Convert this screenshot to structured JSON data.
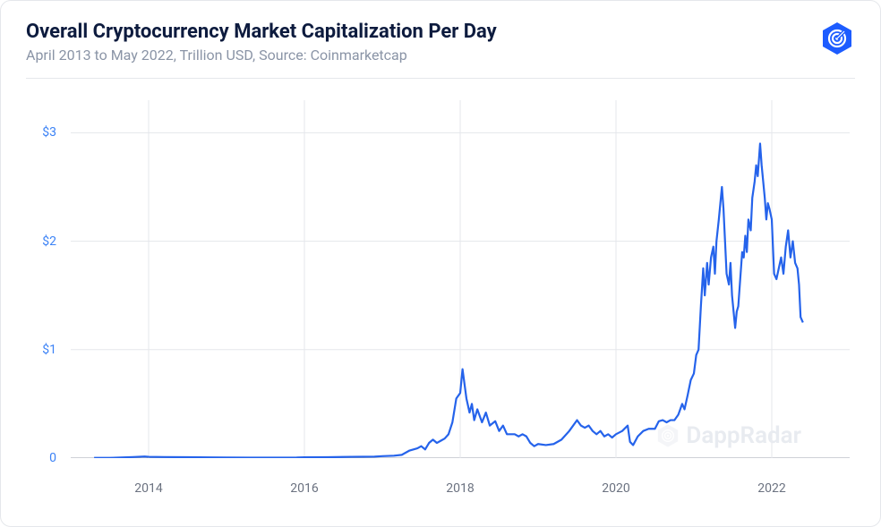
{
  "header": {
    "title": "Overall Cryptocurrency Market Capitalization Per Day",
    "subtitle": "April 2013 to May 2022, Trillion USD, Source: Coinmarketcap"
  },
  "watermark": "DappRadar",
  "chart": {
    "type": "line",
    "line_color": "#2563eb",
    "line_width": 2.2,
    "background_color": "#ffffff",
    "grid_color": "#e5e7eb",
    "axis_color": "#9ca3af",
    "y_axis": {
      "label_color": "#3b82f6",
      "label_fontsize": 14,
      "ylim": [
        0,
        3.3
      ],
      "ticks": [
        {
          "value": 0,
          "label": "0"
        },
        {
          "value": 1,
          "label": "$1"
        },
        {
          "value": 2,
          "label": "$2"
        },
        {
          "value": 3,
          "label": "$3"
        }
      ]
    },
    "x_axis": {
      "label_color": "#6b7280",
      "label_fontsize": 14,
      "xlim": [
        2013.0,
        2023.0
      ],
      "ticks": [
        {
          "value": 2014,
          "label": "2014"
        },
        {
          "value": 2016,
          "label": "2016"
        },
        {
          "value": 2018,
          "label": "2018"
        },
        {
          "value": 2020,
          "label": "2020"
        },
        {
          "value": 2022,
          "label": "2022"
        }
      ]
    },
    "series": [
      {
        "name": "market_cap",
        "color": "#2563eb",
        "data": [
          [
            2013.3,
            0.002
          ],
          [
            2013.5,
            0.002
          ],
          [
            2013.8,
            0.01
          ],
          [
            2013.95,
            0.015
          ],
          [
            2014.0,
            0.012
          ],
          [
            2014.2,
            0.01
          ],
          [
            2014.5,
            0.008
          ],
          [
            2014.8,
            0.006
          ],
          [
            2015.0,
            0.005
          ],
          [
            2015.3,
            0.004
          ],
          [
            2015.6,
            0.004
          ],
          [
            2015.9,
            0.005
          ],
          [
            2016.0,
            0.007
          ],
          [
            2016.3,
            0.008
          ],
          [
            2016.6,
            0.012
          ],
          [
            2016.9,
            0.014
          ],
          [
            2017.0,
            0.018
          ],
          [
            2017.15,
            0.022
          ],
          [
            2017.25,
            0.03
          ],
          [
            2017.35,
            0.07
          ],
          [
            2017.45,
            0.09
          ],
          [
            2017.5,
            0.11
          ],
          [
            2017.55,
            0.08
          ],
          [
            2017.6,
            0.14
          ],
          [
            2017.65,
            0.17
          ],
          [
            2017.7,
            0.14
          ],
          [
            2017.75,
            0.16
          ],
          [
            2017.8,
            0.18
          ],
          [
            2017.85,
            0.22
          ],
          [
            2017.9,
            0.33
          ],
          [
            2017.95,
            0.55
          ],
          [
            2018.0,
            0.6
          ],
          [
            2018.03,
            0.82
          ],
          [
            2018.08,
            0.55
          ],
          [
            2018.12,
            0.42
          ],
          [
            2018.15,
            0.5
          ],
          [
            2018.18,
            0.35
          ],
          [
            2018.22,
            0.45
          ],
          [
            2018.28,
            0.33
          ],
          [
            2018.33,
            0.42
          ],
          [
            2018.38,
            0.3
          ],
          [
            2018.45,
            0.34
          ],
          [
            2018.5,
            0.25
          ],
          [
            2018.55,
            0.3
          ],
          [
            2018.6,
            0.22
          ],
          [
            2018.7,
            0.22
          ],
          [
            2018.75,
            0.2
          ],
          [
            2018.8,
            0.22
          ],
          [
            2018.85,
            0.2
          ],
          [
            2018.9,
            0.14
          ],
          [
            2018.95,
            0.11
          ],
          [
            2019.0,
            0.13
          ],
          [
            2019.1,
            0.12
          ],
          [
            2019.2,
            0.13
          ],
          [
            2019.3,
            0.17
          ],
          [
            2019.4,
            0.25
          ],
          [
            2019.5,
            0.35
          ],
          [
            2019.55,
            0.3
          ],
          [
            2019.6,
            0.28
          ],
          [
            2019.65,
            0.3
          ],
          [
            2019.7,
            0.25
          ],
          [
            2019.75,
            0.22
          ],
          [
            2019.8,
            0.25
          ],
          [
            2019.85,
            0.2
          ],
          [
            2019.9,
            0.22
          ],
          [
            2019.95,
            0.19
          ],
          [
            2020.0,
            0.22
          ],
          [
            2020.08,
            0.25
          ],
          [
            2020.15,
            0.3
          ],
          [
            2020.18,
            0.15
          ],
          [
            2020.22,
            0.12
          ],
          [
            2020.28,
            0.2
          ],
          [
            2020.35,
            0.25
          ],
          [
            2020.42,
            0.27
          ],
          [
            2020.5,
            0.27
          ],
          [
            2020.55,
            0.34
          ],
          [
            2020.6,
            0.35
          ],
          [
            2020.65,
            0.33
          ],
          [
            2020.7,
            0.35
          ],
          [
            2020.75,
            0.35
          ],
          [
            2020.8,
            0.4
          ],
          [
            2020.85,
            0.5
          ],
          [
            2020.88,
            0.45
          ],
          [
            2020.92,
            0.58
          ],
          [
            2020.96,
            0.72
          ],
          [
            2021.0,
            0.78
          ],
          [
            2021.03,
            0.95
          ],
          [
            2021.06,
            1.0
          ],
          [
            2021.09,
            1.4
          ],
          [
            2021.12,
            1.75
          ],
          [
            2021.14,
            1.5
          ],
          [
            2021.17,
            1.8
          ],
          [
            2021.19,
            1.6
          ],
          [
            2021.22,
            1.85
          ],
          [
            2021.25,
            1.95
          ],
          [
            2021.27,
            1.7
          ],
          [
            2021.29,
            2.0
          ],
          [
            2021.32,
            2.2
          ],
          [
            2021.34,
            2.35
          ],
          [
            2021.36,
            2.5
          ],
          [
            2021.38,
            2.3
          ],
          [
            2021.4,
            2.0
          ],
          [
            2021.42,
            1.7
          ],
          [
            2021.45,
            1.6
          ],
          [
            2021.47,
            1.8
          ],
          [
            2021.49,
            1.5
          ],
          [
            2021.51,
            1.35
          ],
          [
            2021.53,
            1.2
          ],
          [
            2021.55,
            1.35
          ],
          [
            2021.57,
            1.4
          ],
          [
            2021.59,
            1.6
          ],
          [
            2021.62,
            1.9
          ],
          [
            2021.64,
            1.85
          ],
          [
            2021.66,
            2.05
          ],
          [
            2021.68,
            1.9
          ],
          [
            2021.7,
            2.2
          ],
          [
            2021.73,
            2.1
          ],
          [
            2021.75,
            2.4
          ],
          [
            2021.78,
            2.55
          ],
          [
            2021.8,
            2.7
          ],
          [
            2021.82,
            2.6
          ],
          [
            2021.85,
            2.9
          ],
          [
            2021.87,
            2.7
          ],
          [
            2021.89,
            2.55
          ],
          [
            2021.91,
            2.4
          ],
          [
            2021.93,
            2.2
          ],
          [
            2021.95,
            2.35
          ],
          [
            2021.97,
            2.3
          ],
          [
            2022.0,
            2.2
          ],
          [
            2022.03,
            1.7
          ],
          [
            2022.06,
            1.65
          ],
          [
            2022.09,
            1.75
          ],
          [
            2022.12,
            1.85
          ],
          [
            2022.15,
            1.7
          ],
          [
            2022.18,
            1.95
          ],
          [
            2022.21,
            2.1
          ],
          [
            2022.24,
            1.85
          ],
          [
            2022.27,
            2.0
          ],
          [
            2022.3,
            1.8
          ],
          [
            2022.33,
            1.75
          ],
          [
            2022.35,
            1.6
          ],
          [
            2022.37,
            1.3
          ],
          [
            2022.4,
            1.25
          ]
        ]
      }
    ]
  }
}
